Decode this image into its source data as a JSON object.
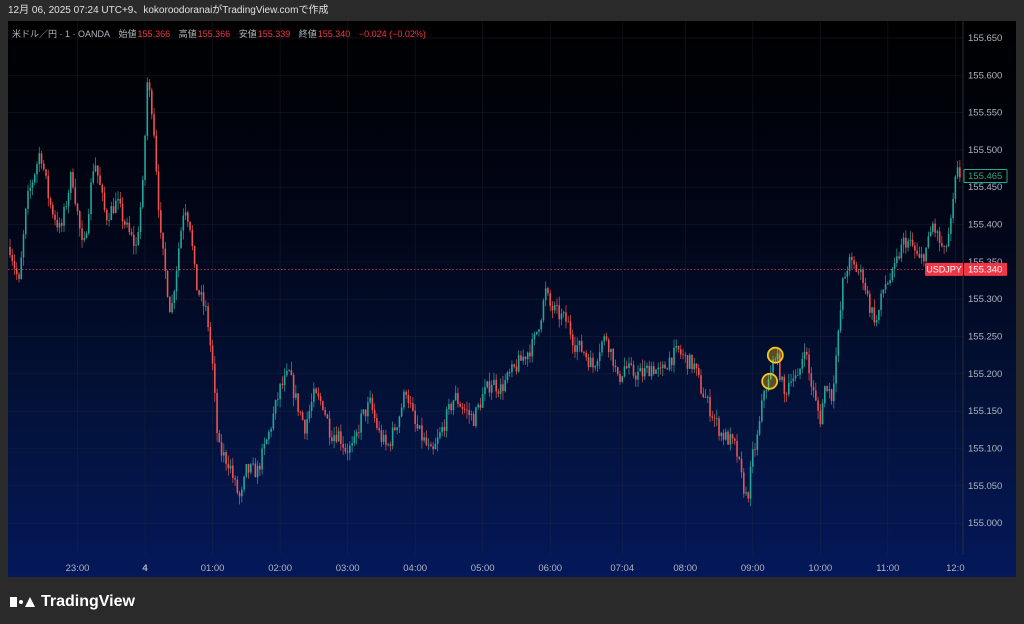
{
  "header": {
    "caption": "12月 06, 2025 07:24 UTC+9、kokoroodoranaiがTradingView.comで作成"
  },
  "legend": {
    "symbol": "米ドル／円 · 1 · OANDA",
    "open_label": "始値",
    "open": "155.366",
    "high_label": "高値",
    "high": "155.366",
    "low_label": "安値",
    "low": "155.339",
    "close_label": "終値",
    "close": "155.340",
    "change": "−0.024 (−0.02%)"
  },
  "brand": {
    "name": "TradingView"
  },
  "colors": {
    "up": "#26a69a",
    "down": "#ef5350",
    "last_price": "#f23645",
    "current_price": "#26a69a",
    "highlight": "#f5c518",
    "grid": "#2a2e39"
  },
  "chart_data": {
    "type": "candlestick",
    "symbol": "USDJPY",
    "interval": "1",
    "ylim": [
      154.96,
      155.67
    ],
    "y_ticks": [
      "155.000",
      "155.050",
      "155.100",
      "155.150",
      "155.200",
      "155.250",
      "155.300",
      "155.350",
      "155.400",
      "155.450",
      "155.500",
      "155.550",
      "155.600",
      "155.650"
    ],
    "x_ticks": [
      {
        "label": "23:00",
        "minute": 60,
        "bold": false
      },
      {
        "label": "4",
        "minute": 120,
        "bold": true
      },
      {
        "label": "01:00",
        "minute": 180,
        "bold": false
      },
      {
        "label": "02:00",
        "minute": 240,
        "bold": false
      },
      {
        "label": "03:00",
        "minute": 300,
        "bold": false
      },
      {
        "label": "04:00",
        "minute": 360,
        "bold": false
      },
      {
        "label": "05:00",
        "minute": 420,
        "bold": false
      },
      {
        "label": "06:00",
        "minute": 480,
        "bold": false
      },
      {
        "label": "07:04",
        "minute": 544,
        "bold": false
      },
      {
        "label": "08:00",
        "minute": 600,
        "bold": false
      },
      {
        "label": "09:00",
        "minute": 660,
        "bold": false
      },
      {
        "label": "10:00",
        "minute": 720,
        "bold": false
      },
      {
        "label": "11:00",
        "minute": 780,
        "bold": false
      },
      {
        "label": "12:0",
        "minute": 840,
        "bold": false
      }
    ],
    "x_range_minutes": [
      0,
      845
    ],
    "price_path": [
      [
        0,
        155.37
      ],
      [
        8,
        155.32
      ],
      [
        15,
        155.43
      ],
      [
        27,
        155.5
      ],
      [
        35,
        155.43
      ],
      [
        45,
        155.39
      ],
      [
        55,
        155.47
      ],
      [
        65,
        155.36
      ],
      [
        75,
        155.49
      ],
      [
        85,
        155.41
      ],
      [
        95,
        155.43
      ],
      [
        105,
        155.39
      ],
      [
        112,
        155.37
      ],
      [
        118,
        155.45
      ],
      [
        122,
        155.59
      ],
      [
        127,
        155.55
      ],
      [
        134,
        155.38
      ],
      [
        143,
        155.28
      ],
      [
        150,
        155.37
      ],
      [
        155,
        155.43
      ],
      [
        160,
        155.4
      ],
      [
        165,
        155.32
      ],
      [
        175,
        155.28
      ],
      [
        180,
        155.21
      ],
      [
        185,
        155.1
      ],
      [
        195,
        155.08
      ],
      [
        200,
        155.05
      ],
      [
        205,
        155.03
      ],
      [
        210,
        155.07
      ],
      [
        220,
        155.07
      ],
      [
        230,
        155.12
      ],
      [
        240,
        155.18
      ],
      [
        248,
        155.2
      ],
      [
        255,
        155.16
      ],
      [
        262,
        155.13
      ],
      [
        270,
        155.17
      ],
      [
        278,
        155.16
      ],
      [
        285,
        155.12
      ],
      [
        292,
        155.12
      ],
      [
        298,
        155.1
      ],
      [
        305,
        155.1
      ],
      [
        312,
        155.14
      ],
      [
        320,
        155.16
      ],
      [
        328,
        155.12
      ],
      [
        335,
        155.1
      ],
      [
        345,
        155.14
      ],
      [
        352,
        155.18
      ],
      [
        360,
        155.13
      ],
      [
        368,
        155.11
      ],
      [
        375,
        155.09
      ],
      [
        385,
        155.13
      ],
      [
        395,
        155.17
      ],
      [
        405,
        155.15
      ],
      [
        412,
        155.14
      ],
      [
        420,
        155.17
      ],
      [
        428,
        155.19
      ],
      [
        436,
        155.18
      ],
      [
        445,
        155.2
      ],
      [
        455,
        155.22
      ],
      [
        465,
        155.24
      ],
      [
        472,
        155.28
      ],
      [
        476,
        155.31
      ],
      [
        480,
        155.29
      ],
      [
        487,
        155.28
      ],
      [
        495,
        155.27
      ],
      [
        502,
        155.24
      ],
      [
        510,
        155.23
      ],
      [
        518,
        155.21
      ],
      [
        525,
        155.24
      ],
      [
        530,
        155.25
      ],
      [
        536,
        155.22
      ],
      [
        540,
        155.19
      ],
      [
        546,
        155.21
      ],
      [
        554,
        155.2
      ],
      [
        562,
        155.2
      ],
      [
        570,
        155.21
      ],
      [
        578,
        155.2
      ],
      [
        586,
        155.22
      ],
      [
        594,
        155.23
      ],
      [
        600,
        155.22
      ],
      [
        608,
        155.21
      ],
      [
        614,
        155.18
      ],
      [
        620,
        155.16
      ],
      [
        626,
        155.14
      ],
      [
        632,
        155.12
      ],
      [
        640,
        155.11
      ],
      [
        645,
        155.1
      ],
      [
        650,
        155.06
      ],
      [
        655,
        155.03
      ],
      [
        660,
        155.09
      ],
      [
        665,
        155.12
      ],
      [
        670,
        155.18
      ],
      [
        675,
        155.19
      ],
      [
        680,
        155.23
      ],
      [
        683,
        155.21
      ],
      [
        688,
        155.17
      ],
      [
        694,
        155.2
      ],
      [
        700,
        155.19
      ],
      [
        706,
        155.24
      ],
      [
        710,
        155.2
      ],
      [
        716,
        155.16
      ],
      [
        720,
        155.14
      ],
      [
        725,
        155.19
      ],
      [
        730,
        155.17
      ],
      [
        736,
        155.25
      ],
      [
        740,
        155.32
      ],
      [
        745,
        155.35
      ],
      [
        752,
        155.34
      ],
      [
        758,
        155.33
      ],
      [
        764,
        155.29
      ],
      [
        770,
        155.27
      ],
      [
        777,
        155.32
      ],
      [
        784,
        155.33
      ],
      [
        790,
        155.36
      ],
      [
        795,
        155.38
      ],
      [
        802,
        155.37
      ],
      [
        808,
        155.35
      ],
      [
        815,
        155.37
      ],
      [
        820,
        155.4
      ],
      [
        825,
        155.38
      ],
      [
        830,
        155.36
      ],
      [
        836,
        155.4
      ],
      [
        841,
        155.47
      ],
      [
        845,
        155.465
      ]
    ],
    "last_price": 155.34,
    "last_price_label": "155.340",
    "last_price_symbol": "USDJPY",
    "current_price": 155.465,
    "current_price_label": "155.465",
    "highlights": [
      {
        "minute": 675,
        "price": 155.19
      },
      {
        "minute": 680,
        "price": 155.225
      }
    ]
  }
}
